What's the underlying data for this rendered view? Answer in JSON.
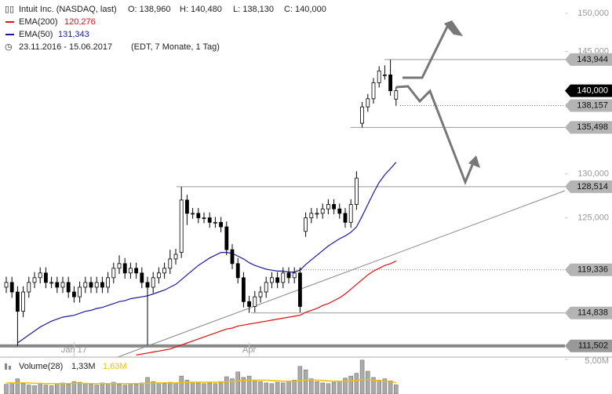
{
  "header": {
    "symbol": "Intuit Inc. (NASDAQ, last)",
    "open": "O: 138,960",
    "high": "H: 140,480",
    "low": "L: 138,130",
    "close": "C: 140,000",
    "period": "23.11.2016 - 15.06.2017",
    "period_note": "(EDT, 7 Monate, 1 Tag)"
  },
  "chart_data": {
    "type": "candlestick",
    "log": true,
    "ylim": [
      110.4,
      151.8
    ],
    "yticks": [
      {
        "value": 150,
        "label": "150,000"
      },
      {
        "value": 145,
        "label": "145,000"
      },
      {
        "value": 130,
        "label": "130,000"
      },
      {
        "value": 125,
        "label": "125,000"
      }
    ],
    "categories": [
      null,
      null,
      null,
      null,
      null,
      null,
      null,
      null,
      null,
      null,
      null,
      null,
      "Jan 17",
      null,
      null,
      null,
      null,
      null,
      null,
      null,
      null,
      null,
      null,
      null,
      null,
      null,
      null,
      null,
      null,
      null,
      null,
      null,
      null,
      null,
      null,
      null,
      null,
      null,
      null,
      null,
      null,
      null,
      null,
      "Apr",
      null,
      null,
      null,
      null,
      null,
      null,
      null,
      null,
      null,
      null,
      null,
      null,
      null,
      null,
      null,
      null,
      null,
      null,
      null,
      null,
      null,
      null,
      null,
      null,
      null,
      null
    ],
    "open": [
      117.5,
      118,
      117,
      115,
      117,
      118,
      118.5,
      119,
      118,
      118,
      117.5,
      118,
      117,
      116.5,
      117.5,
      118,
      117.5,
      118,
      117.5,
      118.5,
      119.5,
      120,
      119,
      119.5,
      119,
      118,
      117.5,
      118.5,
      119,
      119.5,
      120.5,
      121.2,
      127,
      125.5,
      125.5,
      125,
      125,
      124.5,
      124.5,
      124,
      121.5,
      120,
      118.5,
      116,
      115.5,
      116.5,
      117,
      118,
      118.5,
      118,
      119,
      118.5,
      119,
      123.5,
      125,
      125.5,
      125.5,
      126,
      126.5,
      126,
      125.5,
      124.5,
      126.5,
      136,
      138,
      139,
      141,
      142,
      142,
      138.96
    ],
    "high": [
      118.6,
      118.6,
      117.6,
      117.6,
      118.6,
      119.1,
      119.6,
      119.6,
      118.6,
      118.6,
      118.6,
      118.6,
      117.6,
      118.1,
      118.6,
      118.6,
      118.6,
      118.6,
      119.1,
      120.1,
      120.9,
      120.6,
      120.1,
      120.1,
      119.6,
      118.6,
      119.1,
      119.6,
      120.1,
      121.5,
      121.6,
      128.5,
      127.6,
      126.1,
      126.1,
      125.6,
      125.6,
      125.1,
      125.1,
      124.6,
      122.1,
      120.6,
      119.1,
      116.6,
      117.1,
      117.6,
      118.6,
      119.1,
      119.1,
      119.6,
      119.6,
      119.6,
      119.6,
      125.6,
      126.1,
      126.1,
      126.6,
      127.1,
      127.1,
      126.6,
      126.1,
      127.1,
      130.3,
      138.6,
      139.6,
      141.6,
      143.1,
      143.2,
      143.944,
      140.48
    ],
    "low": [
      116.9,
      116.4,
      111.502,
      114.4,
      116.4,
      117.4,
      117.9,
      117.4,
      117.4,
      116.9,
      116.9,
      116.4,
      115.9,
      115.9,
      116.9,
      116.9,
      116.9,
      116.9,
      116.9,
      117.9,
      118.9,
      118.4,
      118.4,
      118.4,
      117.4,
      111.6,
      116.9,
      117.9,
      118.4,
      118.9,
      119.9,
      120.6,
      124.2,
      124.9,
      124.4,
      124.4,
      123.9,
      123.9,
      123.4,
      120.9,
      119.4,
      117.9,
      115.4,
      114.838,
      114.9,
      115.9,
      116.4,
      117.4,
      117.4,
      117.4,
      117.9,
      117.9,
      114.9,
      122.9,
      124.4,
      124.9,
      124.9,
      125.4,
      125.4,
      124.9,
      123.9,
      123.9,
      125.9,
      135.498,
      137.4,
      138.4,
      140.4,
      141.4,
      139.4,
      138.13
    ],
    "close": [
      118,
      117,
      115,
      117,
      118,
      118.5,
      119,
      118,
      118,
      117.5,
      118,
      117,
      116.5,
      117.5,
      118,
      117.5,
      118,
      117.5,
      118.5,
      119.5,
      120,
      119,
      119.5,
      119,
      118,
      117.5,
      118.5,
      119,
      119.5,
      120.5,
      121,
      127,
      125.5,
      125.5,
      125,
      125,
      124.5,
      124.5,
      124,
      121.5,
      120,
      118.5,
      116,
      115.5,
      116.5,
      117,
      118,
      118.5,
      118,
      119,
      118.5,
      119,
      115.5,
      125,
      125.5,
      125.5,
      126,
      126.5,
      126,
      125.5,
      124.5,
      126.5,
      129.5,
      138,
      139,
      141,
      142.5,
      142,
      140,
      140
    ],
    "series": [
      {
        "name": "EMA(200)",
        "color": "#e01010",
        "last": "120,276",
        "values": [
          null,
          null,
          null,
          null,
          null,
          null,
          null,
          null,
          null,
          null,
          null,
          null,
          null,
          null,
          null,
          null,
          null,
          null,
          null,
          null,
          null,
          null,
          null,
          110.6,
          110.7,
          110.8,
          110.9,
          111.0,
          111.1,
          111.2,
          111.4,
          111.6,
          111.8,
          112,
          112.2,
          112.4,
          112.6,
          112.8,
          113,
          113.2,
          113.3,
          113.5,
          113.6,
          113.7,
          113.8,
          113.9,
          114,
          114.1,
          114.2,
          114.3,
          114.4,
          114.5,
          114.6,
          114.9,
          115.1,
          115.3,
          115.6,
          115.8,
          116.1,
          116.4,
          116.8,
          117.3,
          117.8,
          118.3,
          118.8,
          119.2,
          119.5,
          119.8,
          120.0,
          120.276
        ]
      },
      {
        "name": "EMA(50)",
        "color": "#1a1aa0",
        "last": "131,343",
        "values": [
          null,
          null,
          111.8,
          112.2,
          112.6,
          113,
          113.4,
          113.7,
          114,
          114.2,
          114.4,
          114.5,
          114.6,
          114.8,
          115,
          115.1,
          115.3,
          115.4,
          115.6,
          115.8,
          116,
          116.1,
          116.3,
          116.4,
          116.5,
          116.6,
          116.8,
          117,
          117.2,
          117.5,
          117.8,
          118.3,
          118.8,
          119.3,
          119.8,
          120.2,
          120.6,
          120.9,
          121.2,
          121.2,
          121.1,
          120.8,
          120.5,
          120.1,
          119.8,
          119.6,
          119.4,
          119.3,
          119.2,
          119.2,
          119.1,
          119.1,
          119.3,
          119.9,
          120.4,
          120.9,
          121.4,
          121.9,
          122.3,
          122.7,
          123,
          123.4,
          124,
          125.2,
          126.5,
          127.8,
          129,
          129.9,
          130.6,
          131.343
        ]
      }
    ],
    "levels": [
      {
        "value": 143.944,
        "label": "143,944",
        "style": "solid"
      },
      {
        "value": 140,
        "label": "140,000",
        "style": "current"
      },
      {
        "value": 138.157,
        "label": "138,157",
        "style": "dotted"
      },
      {
        "value": 135.498,
        "label": "135,498",
        "style": "solid"
      },
      {
        "value": 128.514,
        "label": "128,514",
        "style": "solid"
      },
      {
        "value": 119.336,
        "label": "119,336",
        "style": "dotted"
      },
      {
        "value": 114.838,
        "label": "114,838",
        "style": "solid"
      },
      {
        "value": 111.502,
        "label": "111,502",
        "style": "thick"
      }
    ],
    "volume": {
      "name": "Volume(28)",
      "last": "1,33M",
      "average_last": "1,63M",
      "color": "#aaaaaa",
      "average_color": "#f0c000",
      "ylim": [
        0,
        5
      ],
      "yticks": [
        {
          "value": 5,
          "label": "5,00M"
        }
      ],
      "values": [
        1.4,
        1.6,
        2.2,
        1.5,
        1.3,
        1.2,
        1.4,
        1.3,
        1.2,
        1.5,
        1.6,
        1.4,
        1.8,
        1.7,
        1.5,
        1.4,
        1.3,
        1.6,
        1.5,
        1.7,
        1.4,
        1.3,
        1.5,
        1.4,
        1.6,
        2.4,
        1.8,
        1.6,
        1.5,
        1.7,
        1.6,
        2.6,
        2.0,
        1.7,
        1.6,
        1.5,
        1.6,
        1.5,
        1.8,
        2.5,
        2.2,
        3.2,
        2.4,
        2.6,
        2.0,
        1.8,
        1.6,
        1.5,
        1.7,
        1.6,
        1.8,
        2.0,
        4.0,
        3.5,
        2.2,
        1.8,
        1.6,
        1.5,
        1.7,
        1.8,
        2.3,
        2.6,
        3.0,
        4.9,
        3.3,
        2.4,
        2.0,
        2.2,
        1.9,
        1.33
      ],
      "average": [
        1.6,
        1.6,
        1.6,
        1.6,
        1.6,
        1.55,
        1.55,
        1.5,
        1.5,
        1.5,
        1.5,
        1.5,
        1.55,
        1.55,
        1.55,
        1.5,
        1.5,
        1.5,
        1.5,
        1.5,
        1.5,
        1.5,
        1.5,
        1.5,
        1.5,
        1.55,
        1.6,
        1.6,
        1.6,
        1.6,
        1.6,
        1.65,
        1.7,
        1.7,
        1.7,
        1.7,
        1.7,
        1.7,
        1.7,
        1.75,
        1.8,
        1.9,
        1.95,
        2.0,
        2.0,
        2.0,
        2.0,
        1.95,
        1.9,
        1.85,
        1.85,
        1.85,
        1.95,
        2.05,
        2.05,
        2.0,
        1.95,
        1.9,
        1.85,
        1.85,
        1.85,
        1.9,
        1.95,
        2.1,
        2.1,
        2.0,
        1.9,
        1.85,
        1.8,
        1.63
      ]
    }
  }
}
